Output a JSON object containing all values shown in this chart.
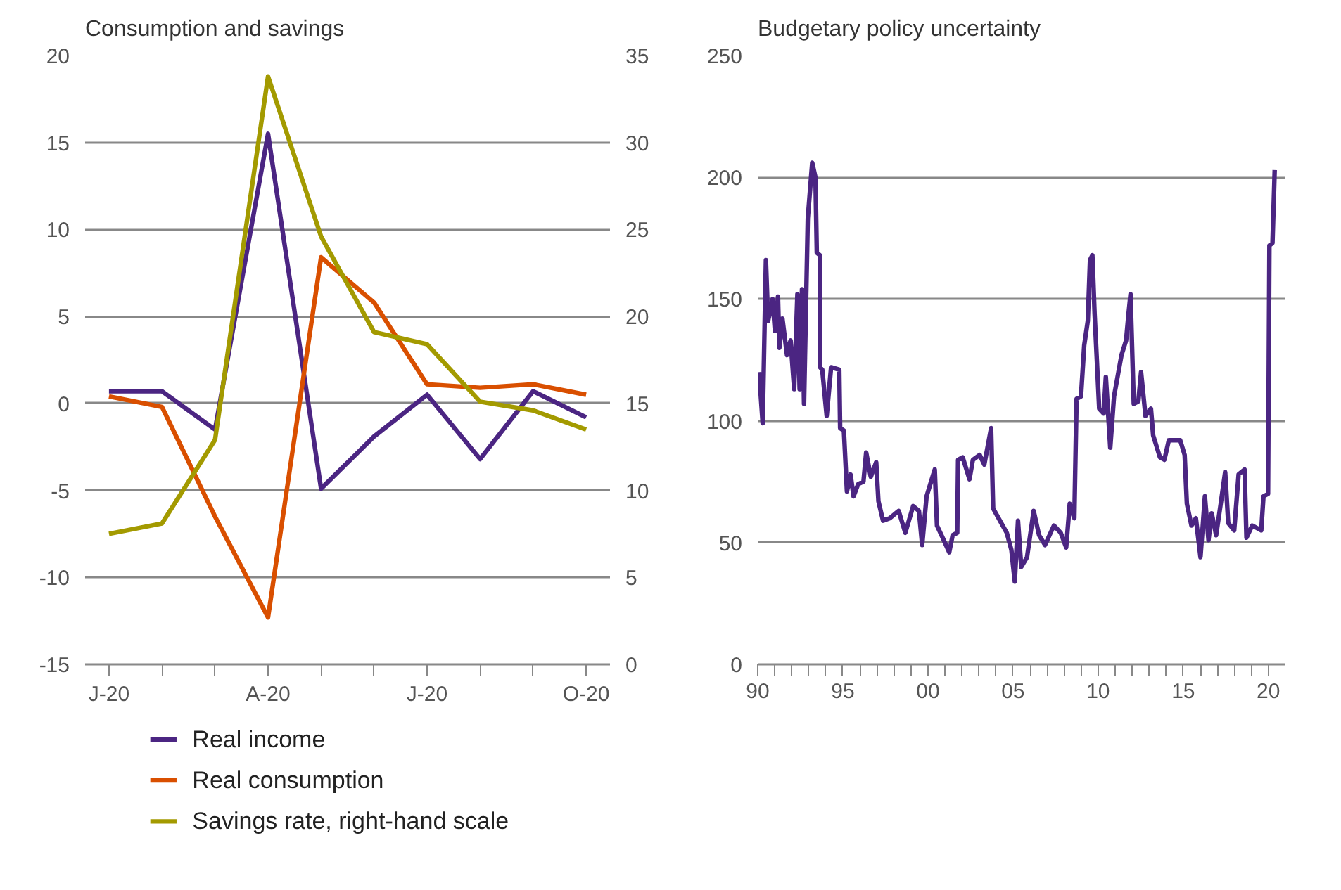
{
  "chart_data": [
    {
      "type": "line",
      "title": "Consumption and savings",
      "categories": [
        "J-20",
        null,
        null,
        "A-20",
        null,
        null,
        "J-20",
        null,
        null,
        "O-20"
      ],
      "series": [
        {
          "name": "Real income",
          "color": "#4b2582",
          "values": [
            0.7,
            0.7,
            -1.5,
            15.5,
            -4.9,
            -1.9,
            0.5,
            -3.2,
            0.7,
            -0.8
          ]
        },
        {
          "name": "Real consumption",
          "color": "#d94f00",
          "values": [
            0.4,
            -0.2,
            -6.5,
            -12.3,
            8.4,
            5.8,
            1.1,
            0.9,
            1.1,
            0.5
          ]
        },
        {
          "name": "Savings rate, right-hand scale",
          "color": "#a39a00",
          "axis": "y2",
          "values": [
            7.5,
            8.1,
            12.9,
            33.8,
            24.6,
            19.1,
            18.4,
            15.1,
            14.6,
            13.5
          ]
        }
      ],
      "ylim": [
        -15,
        20
      ],
      "yticks": [
        -15,
        -10,
        -5,
        0,
        5,
        10,
        15,
        20
      ],
      "y2lim": [
        0,
        35
      ],
      "y2ticks": [
        0,
        5,
        10,
        15,
        20,
        25,
        30,
        35
      ],
      "grid": "y",
      "legend": "bottom"
    },
    {
      "type": "line",
      "title": "Budgetary policy uncertainty",
      "series": [
        {
          "color": "#4b2582",
          "x": [
            1990.08,
            1990.29,
            1990.48,
            1990.61,
            1990.87,
            1991.01,
            1991.19,
            1991.27,
            1991.45,
            1991.72,
            1991.93,
            1992.14,
            1992.33,
            1992.46,
            1992.6,
            1992.72,
            1992.94,
            1993.2,
            1993.39,
            1993.47,
            1993.65,
            1993.66,
            1993.79,
            1994.05,
            1994.31,
            1994.79,
            1994.84,
            1995.06,
            1995.24,
            1995.45,
            1995.63,
            1995.9,
            1996.21,
            1996.37,
            1996.64,
            1996.96,
            1997.09,
            1997.36,
            1997.75,
            1998.28,
            1998.67,
            1999.13,
            1999.47,
            1999.66,
            1999.92,
            2000.18,
            2000.4,
            2000.53,
            2000.93,
            2001.25,
            2001.45,
            2001.72,
            2001.77,
            2002.04,
            2002.44,
            2002.64,
            2003.04,
            2003.31,
            2003.71,
            2003.83,
            2004.23,
            2004.63,
            2004.9,
            2005.1,
            2005.29,
            2005.48,
            2005.82,
            2006.21,
            2006.53,
            2006.88,
            2007.4,
            2007.8,
            2008.12,
            2008.33,
            2008.6,
            2008.73,
            2008.99,
            2009.18,
            2009.39,
            2009.52,
            2009.66,
            2009.79,
            2010.06,
            2010.32,
            2010.45,
            2010.71,
            2010.93,
            2011.37,
            2011.64,
            2011.77,
            2011.9,
            2012.09,
            2012.36,
            2012.52,
            2012.78,
            2013.1,
            2013.23,
            2013.63,
            2013.89,
            2014.15,
            2014.37,
            2014.82,
            2015.08,
            2015.21,
            2015.48,
            2015.74,
            2016.01,
            2016.27,
            2016.48,
            2016.67,
            2016.93,
            2017.2,
            2017.46,
            2017.64,
            2017.99,
            2018.25,
            2018.6,
            2018.71,
            2019.05,
            2019.58,
            2019.71,
            2019.98,
            2020.06,
            2020.24,
            2020.37
          ],
          "values": [
            120,
            99,
            166,
            141,
            150,
            137,
            151,
            130,
            142,
            127,
            133,
            113,
            152,
            113,
            154,
            107,
            183,
            206,
            200,
            169,
            168,
            122,
            121,
            102,
            122,
            121,
            97,
            96,
            71,
            78,
            69,
            74,
            75,
            87,
            77,
            83,
            67,
            59,
            60,
            63,
            54,
            65,
            63,
            49,
            69,
            75,
            80,
            57,
            51,
            46,
            53,
            54,
            84,
            85,
            76,
            84,
            86,
            82,
            97,
            64,
            59,
            54,
            47,
            34,
            59,
            40,
            44,
            63,
            53,
            49,
            57,
            54,
            48,
            66,
            60,
            109,
            110,
            131,
            141,
            166,
            168,
            144,
            105,
            103,
            118,
            89,
            110,
            127,
            133,
            143,
            152,
            107,
            108,
            120,
            102,
            105,
            94,
            85,
            84,
            92,
            92,
            92,
            86,
            66,
            57,
            60,
            44,
            69,
            51,
            62,
            53,
            66,
            79,
            58,
            55,
            78,
            80,
            52,
            57,
            55,
            69,
            70,
            172,
            173,
            203
          ]
        }
      ],
      "xlim": [
        1990,
        2021
      ],
      "xticks": [
        {
          "value": 1990,
          "label": "90"
        },
        {
          "value": 1991,
          "label": null
        },
        {
          "value": 1992,
          "label": null
        },
        {
          "value": 1993,
          "label": null
        },
        {
          "value": 1994,
          "label": null
        },
        {
          "value": 1995,
          "label": "95"
        },
        {
          "value": 1996,
          "label": null
        },
        {
          "value": 1997,
          "label": null
        },
        {
          "value": 1998,
          "label": null
        },
        {
          "value": 1999,
          "label": null
        },
        {
          "value": 2000,
          "label": "00"
        },
        {
          "value": 2001,
          "label": null
        },
        {
          "value": 2002,
          "label": null
        },
        {
          "value": 2003,
          "label": null
        },
        {
          "value": 2004,
          "label": null
        },
        {
          "value": 2005,
          "label": "05"
        },
        {
          "value": 2006,
          "label": null
        },
        {
          "value": 2007,
          "label": null
        },
        {
          "value": 2008,
          "label": null
        },
        {
          "value": 2009,
          "label": null
        },
        {
          "value": 2010,
          "label": "10"
        },
        {
          "value": 2011,
          "label": null
        },
        {
          "value": 2012,
          "label": null
        },
        {
          "value": 2013,
          "label": null
        },
        {
          "value": 2014,
          "label": null
        },
        {
          "value": 2015,
          "label": "15"
        },
        {
          "value": 2016,
          "label": null
        },
        {
          "value": 2017,
          "label": null
        },
        {
          "value": 2018,
          "label": null
        },
        {
          "value": 2019,
          "label": null
        },
        {
          "value": 2020,
          "label": "20"
        }
      ],
      "ylim": [
        0,
        250
      ],
      "yticks": [
        0,
        50,
        100,
        150,
        200,
        250
      ],
      "grid": "y"
    }
  ]
}
